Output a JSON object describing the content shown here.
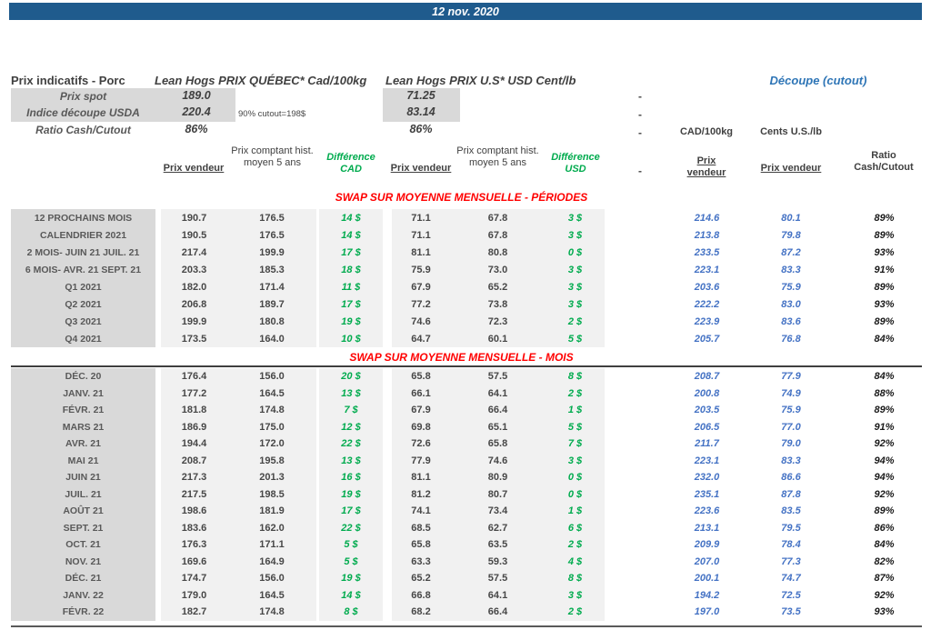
{
  "meta": {
    "date": "12 nov. 2020",
    "dash": "-"
  },
  "colors": {
    "banner_blue": "#1F5B8D",
    "label_gray": "#D9D9D9",
    "band_gray": "#F1F1F1",
    "green": "#00AB4E",
    "red": "#FF0000",
    "value_blue": "#4472C4",
    "cutout_blue": "#2E75B6"
  },
  "top": {
    "title": "Prix indicatifs - Porc",
    "quebec_header": "Lean Hogs PRIX QUÉBEC* Cad/100kg",
    "us_header": "Lean Hogs PRIX U.S* USD Cent/lb",
    "cutout_header": "Découpe (cutout)",
    "cad_unit": "CAD/100kg",
    "us_unit": "Cents U.S./lb",
    "rows": [
      {
        "label": "Prix spot",
        "qc": "189.0",
        "us": "71.25",
        "note": ""
      },
      {
        "label": "Indice découpe USDA",
        "qc": "220.4",
        "us": "83.14",
        "note": "90% cutout=198$"
      },
      {
        "label": "Ratio Cash/Cutout",
        "qc": "86%",
        "us": "86%",
        "note": ""
      }
    ]
  },
  "columns": {
    "prix_vendeur": "Prix vendeur",
    "prix_comptant": "Prix comptant hist. moyen 5 ans",
    "difference_cad": "Différence CAD",
    "difference_usd": "Différence USD",
    "ratio": "Ratio Cash/Cutout"
  },
  "sections": [
    {
      "title": "SWAP SUR MOYENNE MENSUELLE - PÉRIODES",
      "rows": [
        {
          "label": "12 PROCHAINS MOIS",
          "pv_cad": "190.7",
          "hist_cad": "176.5",
          "diff_cad": "14 $",
          "pv_usd": "71.1",
          "hist_usd": "67.8",
          "diff_usd": "3 $",
          "cutout_cad": "214.6",
          "cutout_us": "80.1",
          "ratio": "89%"
        },
        {
          "label": "CALENDRIER 2021",
          "pv_cad": "190.5",
          "hist_cad": "176.5",
          "diff_cad": "14 $",
          "pv_usd": "71.1",
          "hist_usd": "67.8",
          "diff_usd": "3 $",
          "cutout_cad": "213.8",
          "cutout_us": "79.8",
          "ratio": "89%"
        },
        {
          "label": "2 MOIS- JUIN 21 JUIL. 21",
          "pv_cad": "217.4",
          "hist_cad": "199.9",
          "diff_cad": "17 $",
          "pv_usd": "81.1",
          "hist_usd": "80.8",
          "diff_usd": "0 $",
          "cutout_cad": "233.5",
          "cutout_us": "87.2",
          "ratio": "93%"
        },
        {
          "label": "6 MOIS- AVR. 21 SEPT. 21",
          "pv_cad": "203.3",
          "hist_cad": "185.3",
          "diff_cad": "18 $",
          "pv_usd": "75.9",
          "hist_usd": "73.0",
          "diff_usd": "3 $",
          "cutout_cad": "223.1",
          "cutout_us": "83.3",
          "ratio": "91%"
        },
        {
          "label": "Q1 2021",
          "pv_cad": "182.0",
          "hist_cad": "171.4",
          "diff_cad": "11 $",
          "pv_usd": "67.9",
          "hist_usd": "65.2",
          "diff_usd": "3 $",
          "cutout_cad": "203.6",
          "cutout_us": "75.9",
          "ratio": "89%"
        },
        {
          "label": "Q2 2021",
          "pv_cad": "206.8",
          "hist_cad": "189.7",
          "diff_cad": "17 $",
          "pv_usd": "77.2",
          "hist_usd": "73.8",
          "diff_usd": "3 $",
          "cutout_cad": "222.2",
          "cutout_us": "83.0",
          "ratio": "93%"
        },
        {
          "label": "Q3 2021",
          "pv_cad": "199.9",
          "hist_cad": "180.8",
          "diff_cad": "19 $",
          "pv_usd": "74.6",
          "hist_usd": "72.3",
          "diff_usd": "2 $",
          "cutout_cad": "223.9",
          "cutout_us": "83.6",
          "ratio": "89%"
        },
        {
          "label": "Q4 2021",
          "pv_cad": "173.5",
          "hist_cad": "164.0",
          "diff_cad": "10 $",
          "pv_usd": "64.7",
          "hist_usd": "60.1",
          "diff_usd": "5 $",
          "cutout_cad": "205.7",
          "cutout_us": "76.8",
          "ratio": "84%"
        }
      ]
    },
    {
      "title": "SWAP SUR MOYENNE MENSUELLE - MOIS",
      "rows": [
        {
          "label": "DÉC. 20",
          "pv_cad": "176.4",
          "hist_cad": "156.0",
          "diff_cad": "20 $",
          "pv_usd": "65.8",
          "hist_usd": "57.5",
          "diff_usd": "8 $",
          "cutout_cad": "208.7",
          "cutout_us": "77.9",
          "ratio": "84%"
        },
        {
          "label": "JANV. 21",
          "pv_cad": "177.2",
          "hist_cad": "164.5",
          "diff_cad": "13 $",
          "pv_usd": "66.1",
          "hist_usd": "64.1",
          "diff_usd": "2 $",
          "cutout_cad": "200.8",
          "cutout_us": "74.9",
          "ratio": "88%"
        },
        {
          "label": "FÉVR. 21",
          "pv_cad": "181.8",
          "hist_cad": "174.8",
          "diff_cad": "7 $",
          "pv_usd": "67.9",
          "hist_usd": "66.4",
          "diff_usd": "1 $",
          "cutout_cad": "203.5",
          "cutout_us": "75.9",
          "ratio": "89%"
        },
        {
          "label": "MARS 21",
          "pv_cad": "186.9",
          "hist_cad": "175.0",
          "diff_cad": "12 $",
          "pv_usd": "69.8",
          "hist_usd": "65.1",
          "diff_usd": "5 $",
          "cutout_cad": "206.5",
          "cutout_us": "77.0",
          "ratio": "91%"
        },
        {
          "label": "AVR. 21",
          "pv_cad": "194.4",
          "hist_cad": "172.0",
          "diff_cad": "22 $",
          "pv_usd": "72.6",
          "hist_usd": "65.8",
          "diff_usd": "7 $",
          "cutout_cad": "211.7",
          "cutout_us": "79.0",
          "ratio": "92%"
        },
        {
          "label": "MAI 21",
          "pv_cad": "208.7",
          "hist_cad": "195.8",
          "diff_cad": "13 $",
          "pv_usd": "77.9",
          "hist_usd": "74.6",
          "diff_usd": "3 $",
          "cutout_cad": "223.1",
          "cutout_us": "83.3",
          "ratio": "94%"
        },
        {
          "label": "JUIN 21",
          "pv_cad": "217.3",
          "hist_cad": "201.3",
          "diff_cad": "16 $",
          "pv_usd": "81.1",
          "hist_usd": "80.9",
          "diff_usd": "0 $",
          "cutout_cad": "232.0",
          "cutout_us": "86.6",
          "ratio": "94%"
        },
        {
          "label": "JUIL. 21",
          "pv_cad": "217.5",
          "hist_cad": "198.5",
          "diff_cad": "19 $",
          "pv_usd": "81.2",
          "hist_usd": "80.7",
          "diff_usd": "0 $",
          "cutout_cad": "235.1",
          "cutout_us": "87.8",
          "ratio": "92%"
        },
        {
          "label": "AOÛT 21",
          "pv_cad": "198.6",
          "hist_cad": "181.9",
          "diff_cad": "17 $",
          "pv_usd": "74.1",
          "hist_usd": "73.4",
          "diff_usd": "1 $",
          "cutout_cad": "223.6",
          "cutout_us": "83.5",
          "ratio": "89%"
        },
        {
          "label": "SEPT. 21",
          "pv_cad": "183.6",
          "hist_cad": "162.0",
          "diff_cad": "22 $",
          "pv_usd": "68.5",
          "hist_usd": "62.7",
          "diff_usd": "6 $",
          "cutout_cad": "213.1",
          "cutout_us": "79.5",
          "ratio": "86%"
        },
        {
          "label": "OCT. 21",
          "pv_cad": "176.3",
          "hist_cad": "171.1",
          "diff_cad": "5 $",
          "pv_usd": "65.8",
          "hist_usd": "63.5",
          "diff_usd": "2 $",
          "cutout_cad": "209.9",
          "cutout_us": "78.4",
          "ratio": "84%"
        },
        {
          "label": "NOV. 21",
          "pv_cad": "169.6",
          "hist_cad": "164.9",
          "diff_cad": "5 $",
          "pv_usd": "63.3",
          "hist_usd": "59.3",
          "diff_usd": "4 $",
          "cutout_cad": "207.0",
          "cutout_us": "77.3",
          "ratio": "82%"
        },
        {
          "label": "DÉC. 21",
          "pv_cad": "174.7",
          "hist_cad": "156.0",
          "diff_cad": "19 $",
          "pv_usd": "65.2",
          "hist_usd": "57.5",
          "diff_usd": "8 $",
          "cutout_cad": "200.1",
          "cutout_us": "74.7",
          "ratio": "87%"
        },
        {
          "label": "JANV. 22",
          "pv_cad": "179.0",
          "hist_cad": "164.5",
          "diff_cad": "14 $",
          "pv_usd": "66.8",
          "hist_usd": "64.1",
          "diff_usd": "3 $",
          "cutout_cad": "194.2",
          "cutout_us": "72.5",
          "ratio": "92%"
        },
        {
          "label": "FÉVR. 22",
          "pv_cad": "182.7",
          "hist_cad": "174.8",
          "diff_cad": "8 $",
          "pv_usd": "68.2",
          "hist_usd": "66.4",
          "diff_usd": "2 $",
          "cutout_cad": "197.0",
          "cutout_us": "73.5",
          "ratio": "93%"
        }
      ]
    }
  ]
}
